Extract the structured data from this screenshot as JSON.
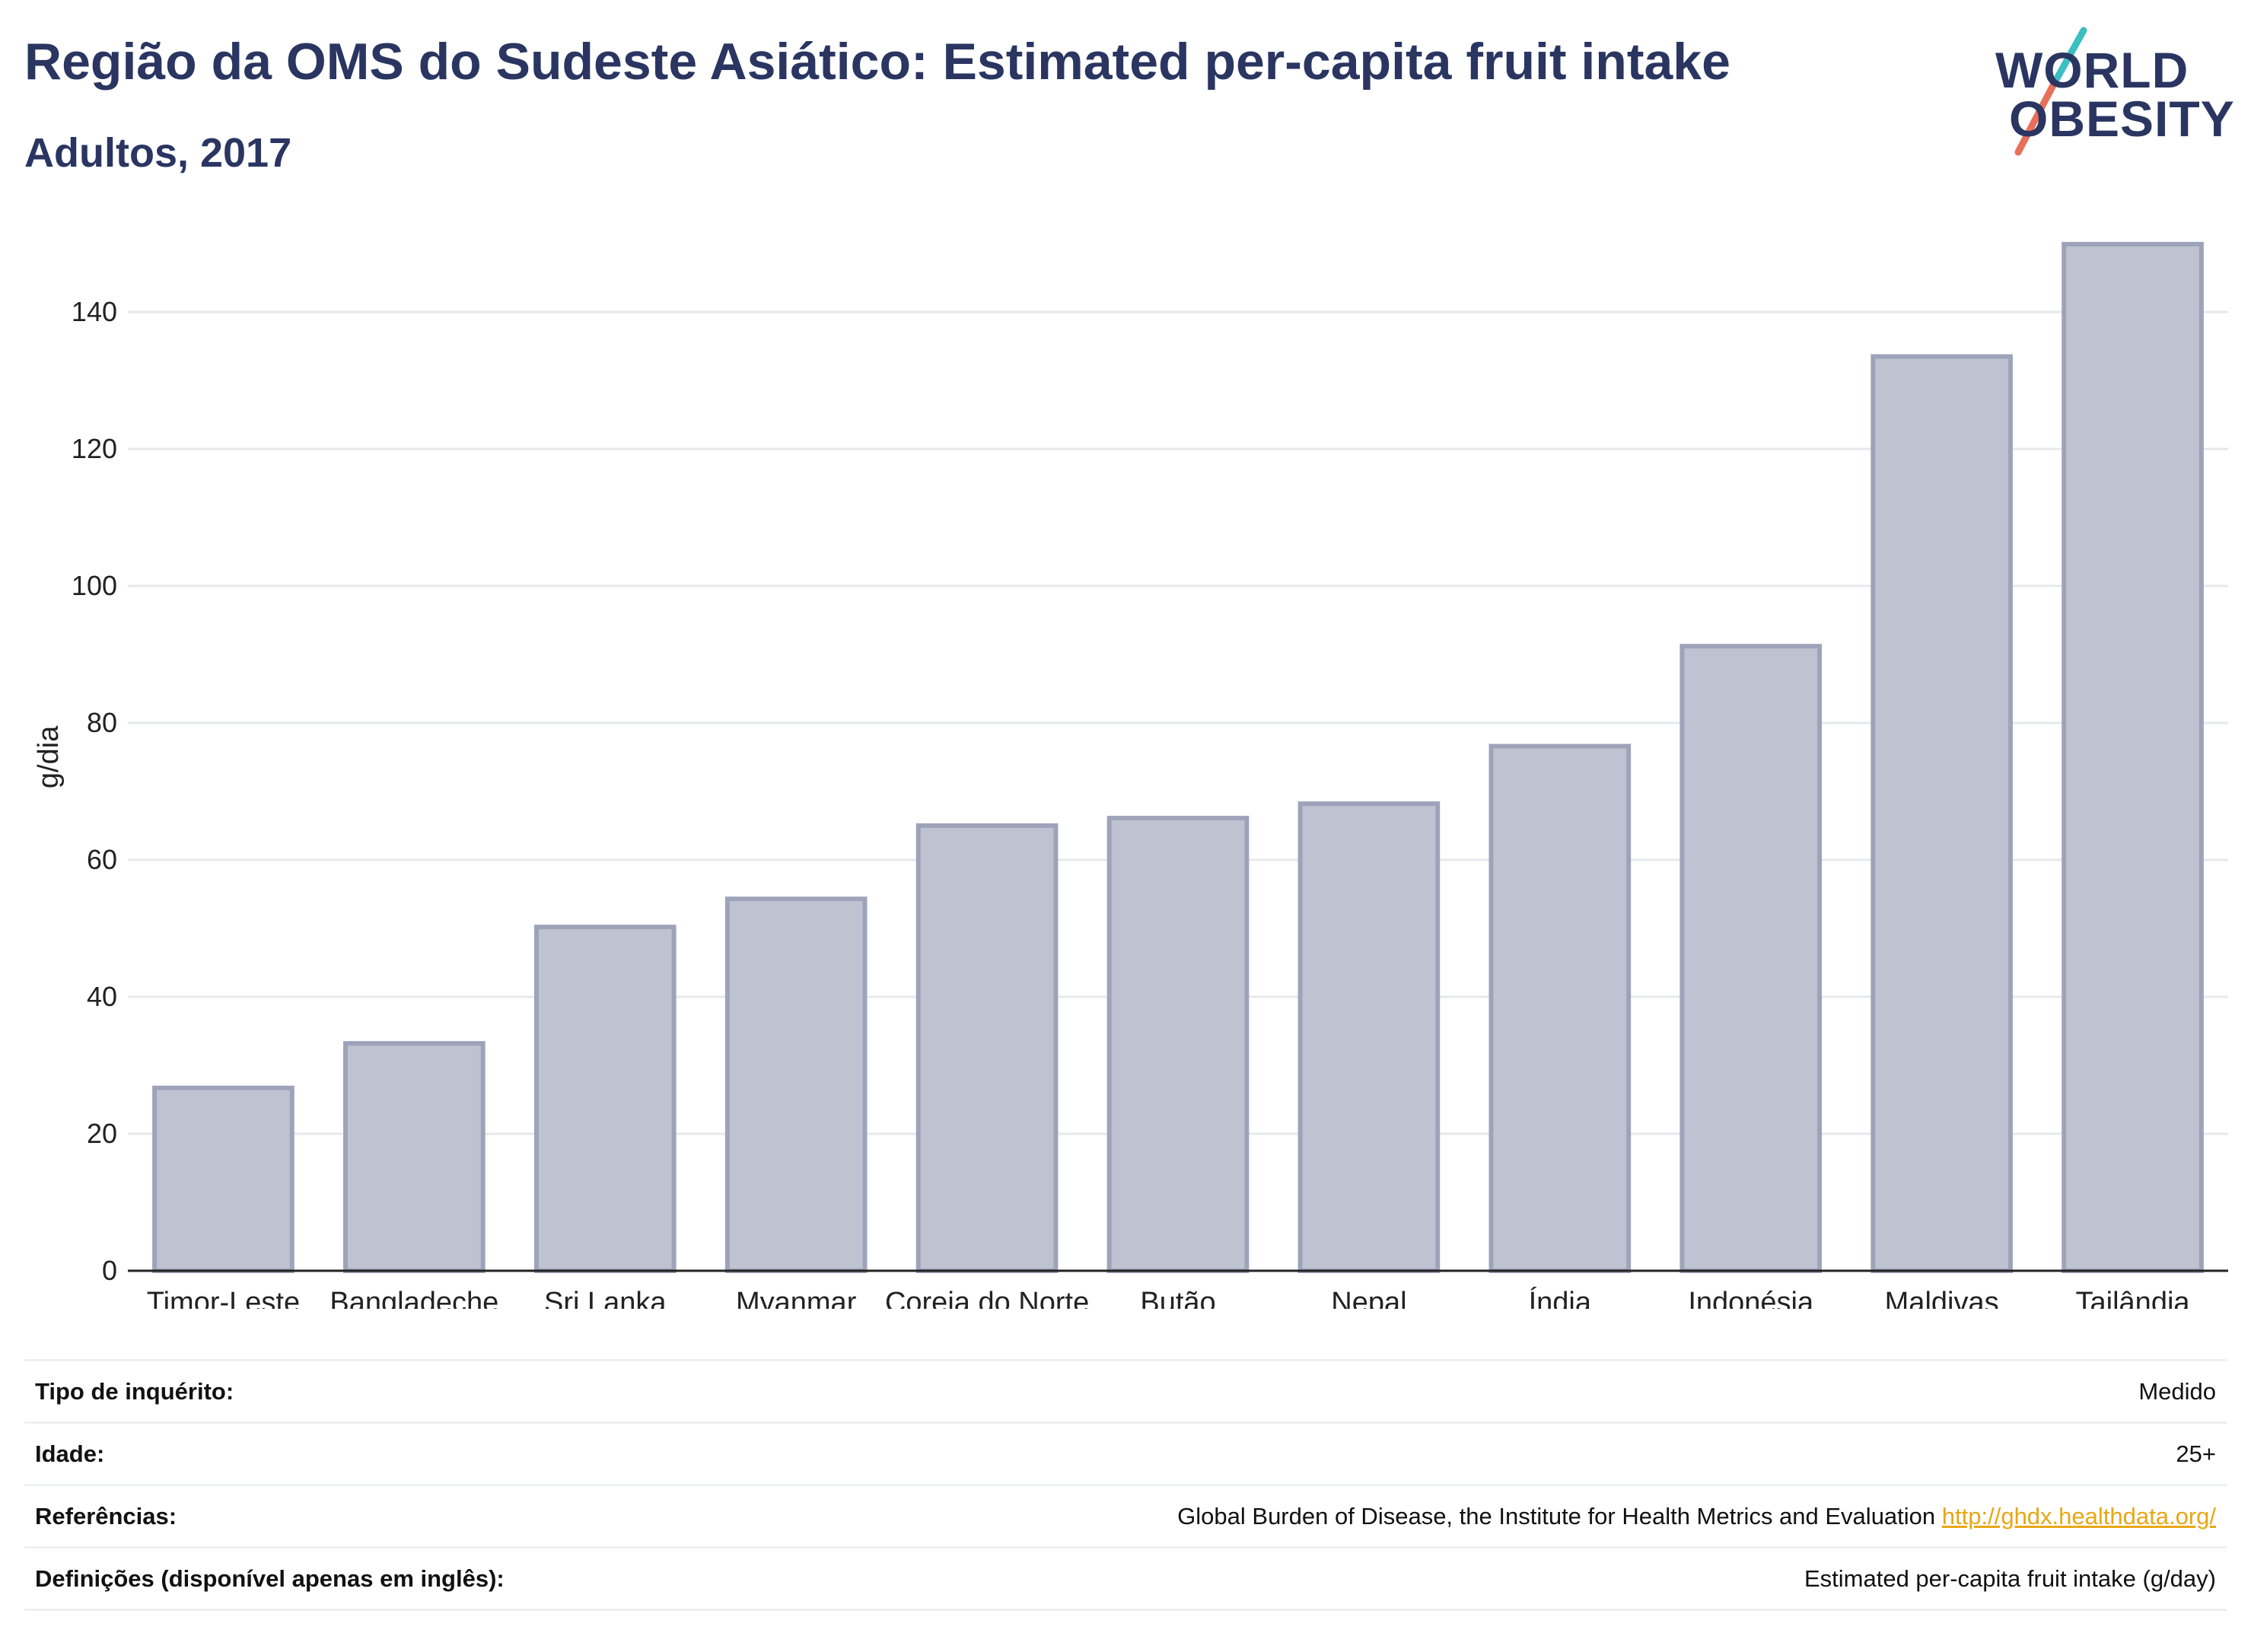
{
  "header": {
    "title": "Região da OMS do Sudeste Asiático: Estimated per-capita fruit intake",
    "subtitle": "Adultos, 2017"
  },
  "logo": {
    "line1": "WORLD",
    "line2": "OBESITY",
    "colors": {
      "text": "#2a3561",
      "slash_top": "#3bbfc1",
      "slash_bottom": "#e8705a"
    }
  },
  "colors": {
    "bar_fill": "#bfc3d1",
    "bar_stroke": "#9ea3ba",
    "grid": "#e6e8ec",
    "axis": "#222222",
    "link": "#e8a715"
  },
  "chart_data": {
    "type": "bar",
    "categories": [
      "Timor-Leste",
      "Bangladeche",
      "Sri Lanka",
      "Myanmar",
      "Coreia do Norte",
      "Butão",
      "Nepal",
      "Índia",
      "Indonésia",
      "Maldivas",
      "Tailândia"
    ],
    "values": [
      26.7,
      33.2,
      50.2,
      54.3,
      65.0,
      66.1,
      68.2,
      76.6,
      91.2,
      133.5,
      149.9
    ],
    "ylabel": "g/dia",
    "xlabel": "",
    "ylim": [
      0,
      150
    ],
    "yticks": [
      0,
      20,
      40,
      60,
      80,
      100,
      120,
      140
    ],
    "grid": true
  },
  "info": {
    "rows": [
      {
        "key": "Tipo de inquérito:",
        "value": "Medido"
      },
      {
        "key": "Idade:",
        "value": "25+"
      },
      {
        "key": "Referências:",
        "value": "Global Burden of Disease, the Institute for Health Metrics and Evaluation",
        "link": "http://ghdx.healthdata.org/"
      },
      {
        "key": "Definições (disponível apenas em inglês):",
        "value": "Estimated per-capita fruit intake (g/day)"
      }
    ]
  }
}
